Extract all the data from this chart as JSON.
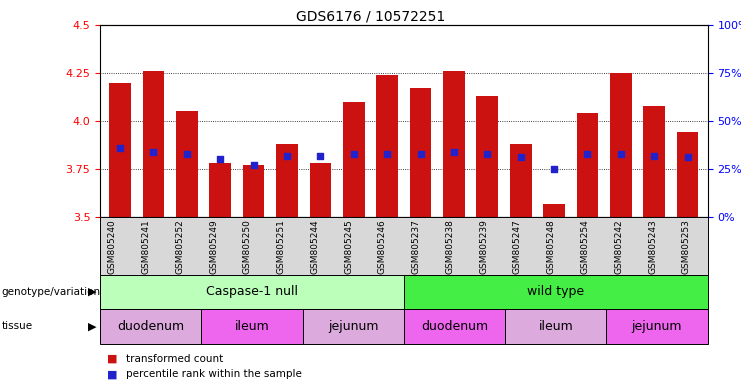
{
  "title": "GDS6176 / 10572251",
  "samples": [
    "GSM805240",
    "GSM805241",
    "GSM805252",
    "GSM805249",
    "GSM805250",
    "GSM805251",
    "GSM805244",
    "GSM805245",
    "GSM805246",
    "GSM805237",
    "GSM805238",
    "GSM805239",
    "GSM805247",
    "GSM805248",
    "GSM805254",
    "GSM805242",
    "GSM805243",
    "GSM805253"
  ],
  "bar_values": [
    4.2,
    4.26,
    4.05,
    3.78,
    3.77,
    3.88,
    3.78,
    4.1,
    4.24,
    4.17,
    4.26,
    4.13,
    3.88,
    3.57,
    4.04,
    4.25,
    4.08,
    3.94
  ],
  "blue_dot_values": [
    3.86,
    3.84,
    3.83,
    3.8,
    3.77,
    3.82,
    3.82,
    3.83,
    3.83,
    3.83,
    3.84,
    3.83,
    3.81,
    3.75,
    3.83,
    3.83,
    3.82,
    3.81
  ],
  "bar_color": "#cc1111",
  "dot_color": "#2222cc",
  "ymin": 3.5,
  "ymax": 4.5,
  "yticks": [
    3.5,
    3.75,
    4.0,
    4.25,
    4.5
  ],
  "right_yticks": [
    0,
    25,
    50,
    75,
    100
  ],
  "right_ylabels": [
    "0%",
    "25%",
    "50%",
    "75%",
    "100%"
  ],
  "genotype_groups": [
    {
      "label": "Caspase-1 null",
      "start": 0,
      "end": 9,
      "color": "#bbffbb"
    },
    {
      "label": "wild type",
      "start": 9,
      "end": 18,
      "color": "#44ee44"
    }
  ],
  "tissue_groups": [
    {
      "label": "duodenum",
      "start": 0,
      "end": 3,
      "color": "#ddaadd"
    },
    {
      "label": "ileum",
      "start": 3,
      "end": 6,
      "color": "#ee66ee"
    },
    {
      "label": "jejunum",
      "start": 6,
      "end": 9,
      "color": "#ddaadd"
    },
    {
      "label": "duodenum",
      "start": 9,
      "end": 12,
      "color": "#ee66ee"
    },
    {
      "label": "ileum",
      "start": 12,
      "end": 15,
      "color": "#ddaadd"
    },
    {
      "label": "jejunum",
      "start": 15,
      "end": 18,
      "color": "#ee66ee"
    }
  ],
  "legend_red": "transformed count",
  "legend_blue": "percentile rank within the sample",
  "xlabel_genotype": "genotype/variation",
  "xlabel_tissue": "tissue"
}
